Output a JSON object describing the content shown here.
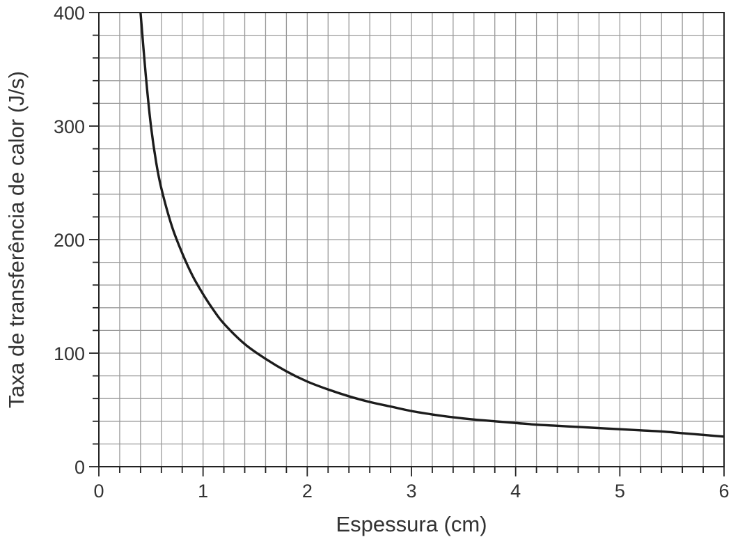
{
  "chart_data": {
    "type": "line",
    "title": "",
    "xlabel": "Espessura (cm)",
    "ylabel": "Taxa de transferência de calor (J/s)",
    "xlim": [
      0,
      6
    ],
    "ylim": [
      0,
      400
    ],
    "xticks": [
      0,
      1,
      2,
      3,
      4,
      5,
      6
    ],
    "yticks": [
      0,
      100,
      200,
      300,
      400
    ],
    "x_minor_step": 0.2,
    "y_minor_step": 20,
    "grid": true,
    "legend": "none",
    "curve_color": "#1c1c1c",
    "series": [
      {
        "x": [
          0.4,
          0.45,
          0.5,
          0.55,
          0.6,
          0.7,
          0.8,
          0.9,
          1.0,
          1.1,
          1.2,
          1.4,
          1.6,
          1.8,
          2.0,
          2.2,
          2.4,
          2.6,
          2.8,
          3.0,
          3.2,
          3.4,
          3.6,
          3.8,
          4.0,
          4.2,
          4.4,
          4.6,
          4.8,
          5.0,
          5.2,
          5.4,
          5.6,
          5.8,
          6.0
        ],
        "values": [
          400,
          345,
          300,
          268,
          245,
          212,
          188,
          168,
          152,
          138,
          126,
          108,
          95,
          84,
          75,
          68,
          62,
          57,
          53,
          49,
          46,
          43.5,
          41.5,
          40,
          38.5,
          37,
          36,
          35,
          34,
          33,
          32,
          31,
          29.5,
          28,
          26.5
        ]
      }
    ]
  }
}
